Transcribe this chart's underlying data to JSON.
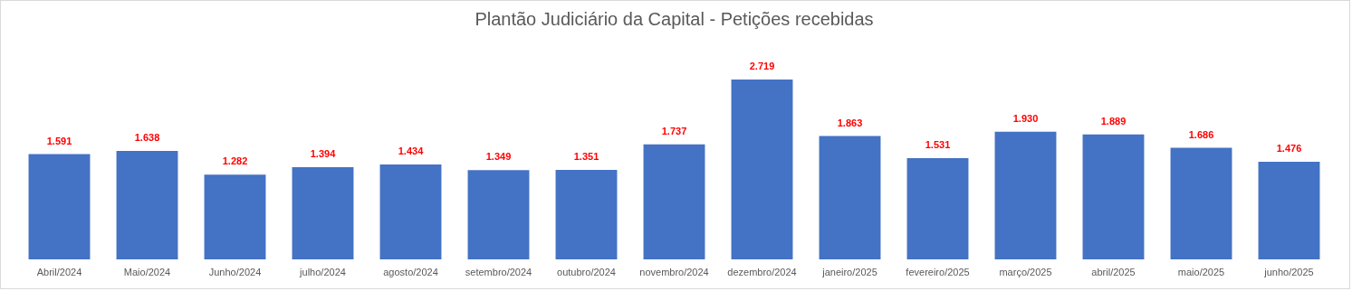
{
  "chart_data": {
    "type": "bar",
    "title": "Plantão Judiciário da Capital - Petições recebidas",
    "categories": [
      "Abril/2024",
      "Maio/2024",
      "Junho/2024",
      "julho/2024",
      "agosto/2024",
      "setembro/2024",
      "outubro/2024",
      "novembro/2024",
      "dezembro/2024",
      "janeiro/2025",
      "fevereiro/2025",
      "março/2025",
      "abril/2025",
      "maio/2025",
      "junho/2025"
    ],
    "values": [
      1591,
      1638,
      1282,
      1394,
      1434,
      1349,
      1351,
      1737,
      2719,
      1863,
      1531,
      1930,
      1889,
      1686,
      1476
    ],
    "value_labels": [
      "1.591",
      "1.638",
      "1.282",
      "1.394",
      "1.434",
      "1.349",
      "1.351",
      "1.737",
      "2.719",
      "1.863",
      "1.531",
      "1.930",
      "1.889",
      "1.686",
      "1.476"
    ],
    "color": "#4472c4",
    "grid": false
  }
}
